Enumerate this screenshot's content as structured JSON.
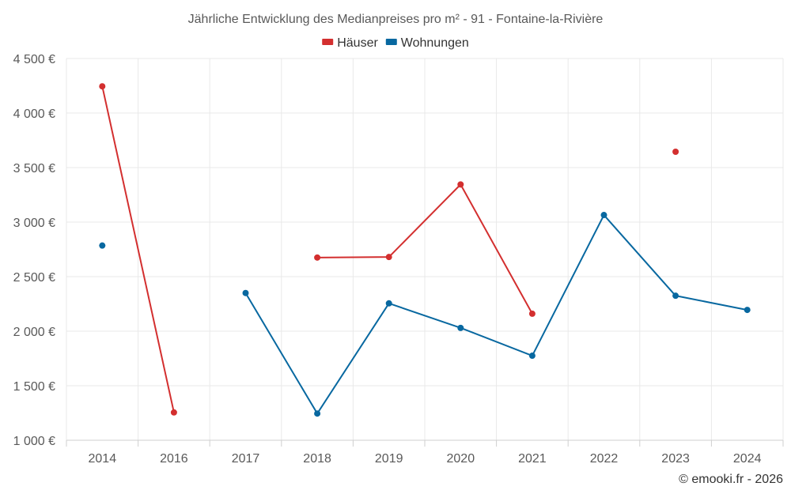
{
  "chart_data": {
    "type": "line",
    "title": "Jährliche Entwicklung des Medianpreises pro m² - 91 - Fontaine-la-Rivière",
    "categories": [
      "2014",
      "2016",
      "2017",
      "2018",
      "2019",
      "2020",
      "2021",
      "2022",
      "2023",
      "2024"
    ],
    "ylim": [
      1000,
      4500
    ],
    "yticks": [
      1000,
      1500,
      2000,
      2500,
      3000,
      3500,
      4000,
      4500
    ],
    "ytick_labels": [
      "1 000 €",
      "1 500 €",
      "2 000 €",
      "2 500 €",
      "3 000 €",
      "3 500 €",
      "4 000 €",
      "4 500 €"
    ],
    "legend_position": "top-center",
    "grid": true,
    "series": [
      {
        "name": "Häuser",
        "color": "#d32f2f",
        "values": [
          4245,
          1255,
          null,
          2675,
          2680,
          3345,
          2160,
          null,
          3645,
          null
        ]
      },
      {
        "name": "Wohnungen",
        "color": "#0868a0",
        "values": [
          2785,
          null,
          2350,
          1245,
          2255,
          2030,
          1775,
          3065,
          2325,
          2195
        ]
      }
    ]
  },
  "footer": {
    "credit": "© emooki.fr - 2026"
  }
}
